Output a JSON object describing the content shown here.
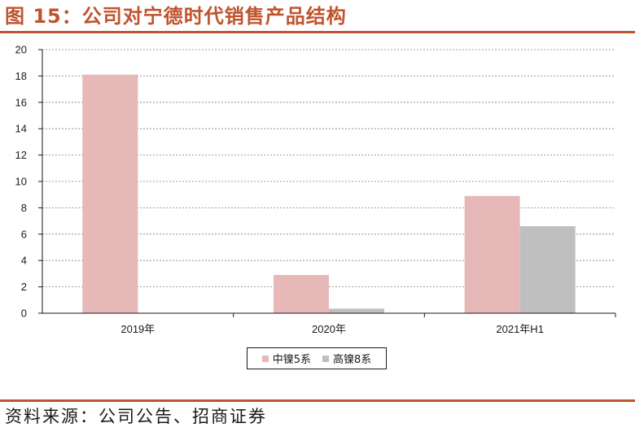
{
  "header": {
    "title": "图 15：公司对宁德时代销售产品结构"
  },
  "footer": {
    "source": "资料来源：公司公告、招商证券"
  },
  "colors": {
    "accent": "#c0532d",
    "series_0": "#e6b9b8",
    "series_1": "#bfbfbf"
  },
  "chart_data": {
    "type": "bar",
    "title": "",
    "xlabel": "",
    "ylabel": "",
    "categories": [
      "2019年",
      "2020年",
      "2021年H1"
    ],
    "series": [
      {
        "name": "中镍5系",
        "values": [
          18.1,
          2.9,
          8.9
        ]
      },
      {
        "name": "高镍8系",
        "values": [
          0,
          0.35,
          6.6
        ]
      }
    ],
    "ylim": [
      0,
      20
    ],
    "yticks": [
      "0",
      "2",
      "4",
      "6",
      "8",
      "10",
      "12",
      "14",
      "16",
      "18",
      "20"
    ],
    "grid": true,
    "legend_position": "bottom"
  }
}
